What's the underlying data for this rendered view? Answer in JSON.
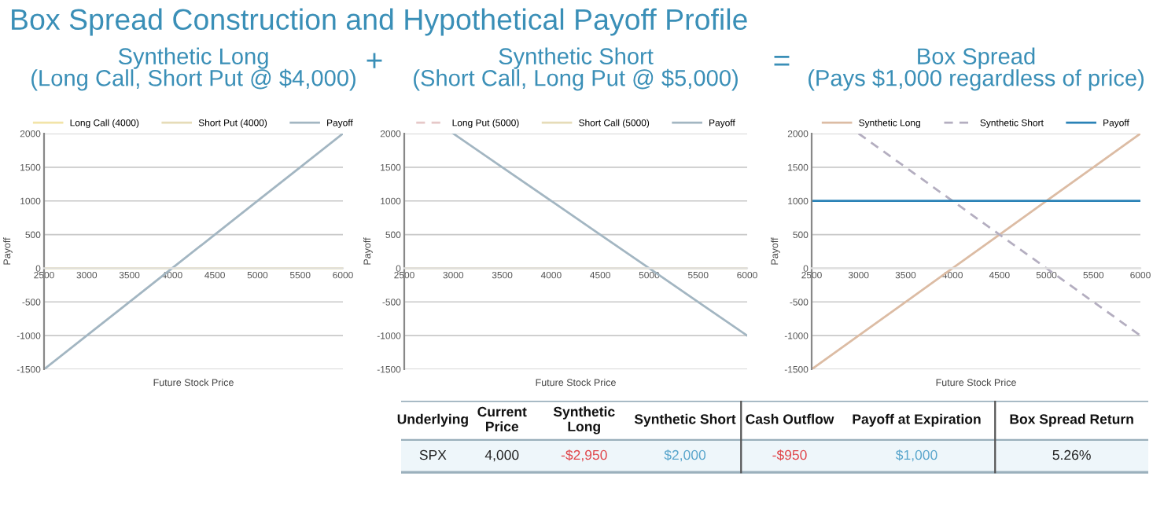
{
  "chart_data": [
    {
      "type": "line",
      "title": "Box Spread Construction and Hypothetical Payoff Profile",
      "subtitle": "Synthetic Long\n(Long Call, Short Put @ $4,000)",
      "xlabel": "Future Stock Price",
      "ylabel": "Payoff",
      "annotations": [
        "+"
      ],
      "x": [
        2500,
        3000,
        3500,
        4000,
        4500,
        5000,
        5500,
        6000
      ],
      "series": [
        {
          "name": "Long Call (4000)",
          "color": "#f2e4a8",
          "line_style": "solid",
          "values": [
            0,
            0,
            0,
            0,
            0,
            0,
            0,
            0
          ]
        },
        {
          "name": "Short Put (4000)",
          "color": "#e6dcb8",
          "line_style": "solid",
          "values": [
            null,
            null,
            null,
            null,
            null,
            null,
            null,
            null
          ]
        },
        {
          "name": "Payoff",
          "color": "#a3b6c2",
          "line_style": "solid",
          "values": [
            -1500,
            -1000,
            -500,
            0,
            500,
            1000,
            1500,
            2000
          ]
        }
      ],
      "xlim": [
        2500,
        6000
      ],
      "ylim": [
        -1500,
        2000
      ],
      "xticks": [
        2500,
        3000,
        3500,
        4000,
        4500,
        5000,
        5500,
        6000
      ],
      "yticks": [
        -1500,
        -1000,
        -500,
        0,
        500,
        1000,
        1500,
        2000
      ],
      "grid": "y",
      "legend": "top"
    },
    {
      "type": "line",
      "title": "Synthetic Short\n(Short Call, Long Put @ $5,000)",
      "xlabel": "Future Stock Price",
      "ylabel": "Payoff",
      "annotations": [
        "="
      ],
      "x": [
        2500,
        3000,
        3500,
        4000,
        4500,
        5000,
        5500,
        6000
      ],
      "series": [
        {
          "name": "Long Put (5000)",
          "color": "#e6c8c8",
          "line_style": "dashed",
          "values": [
            null,
            null,
            null,
            null,
            null,
            null,
            null,
            null
          ]
        },
        {
          "name": "Short Call (5000)",
          "color": "#e6dcb8",
          "line_style": "solid",
          "values": [
            0,
            0,
            0,
            0,
            0,
            0,
            0,
            0
          ]
        },
        {
          "name": "Payoff",
          "color": "#a3b6c2",
          "line_style": "solid",
          "values": [
            null,
            2000,
            1500,
            1000,
            500,
            0,
            -500,
            -1000
          ]
        }
      ],
      "xlim": [
        2500,
        6000
      ],
      "ylim": [
        -1500,
        2000
      ],
      "xticks": [
        2500,
        3000,
        3500,
        4000,
        4500,
        5000,
        5500,
        6000
      ],
      "yticks": [
        -1500,
        -1000,
        -500,
        0,
        500,
        1000,
        1500,
        2000
      ],
      "grid": "y",
      "legend": "top"
    },
    {
      "type": "line",
      "title": "Box Spread\n(Pays $1,000 regardless of price)",
      "xlabel": "Future Stock Price",
      "ylabel": "Payoff",
      "x": [
        2500,
        3000,
        3500,
        4000,
        4500,
        5000,
        5500,
        6000
      ],
      "series": [
        {
          "name": "Synthetic Long",
          "color": "#dcbca4",
          "line_style": "solid",
          "values": [
            -1500,
            -1000,
            -500,
            0,
            500,
            1000,
            1500,
            2000
          ]
        },
        {
          "name": "Synthetic Short",
          "color": "#b4aec0",
          "line_style": "dashed",
          "values": [
            null,
            2000,
            1500,
            1000,
            500,
            0,
            -500,
            -1000
          ]
        },
        {
          "name": "Payoff",
          "color": "#2a82b6",
          "line_style": "solid",
          "values": [
            1000,
            1000,
            1000,
            1000,
            1000,
            1000,
            1000,
            1000
          ]
        }
      ],
      "xlim": [
        2500,
        6000
      ],
      "ylim": [
        -1500,
        2000
      ],
      "xticks": [
        2500,
        3000,
        3500,
        4000,
        4500,
        5000,
        5500,
        6000
      ],
      "yticks": [
        -1500,
        -1000,
        -500,
        0,
        500,
        1000,
        1500,
        2000
      ],
      "grid": "y",
      "legend": "top"
    },
    {
      "type": "other",
      "categories": [
        "Underlying",
        "Current\nPrice",
        "Synthetic\nLong",
        "Synthetic Short",
        "Cash Outflow",
        "Payoff at Expiration",
        "Box Spread Return"
      ],
      "annotations": [
        "SPX",
        "4,000",
        "-$2,950",
        "$2,000",
        "-$950",
        "$1,000",
        "5.26%"
      ],
      "colors": [
        "#222222",
        "#222222",
        "#e0474c",
        "#5aa6cc",
        "#e0474c",
        "#5aa6cc",
        "#222222"
      ]
    }
  ]
}
